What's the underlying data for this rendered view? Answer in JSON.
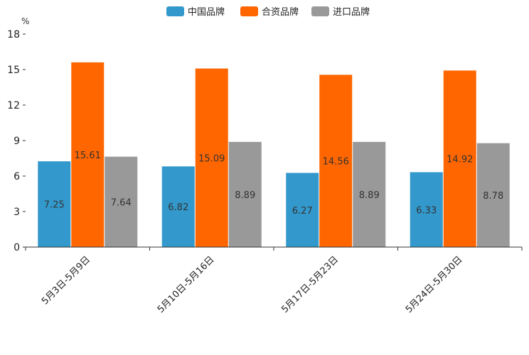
{
  "chart_data": {
    "type": "bar",
    "title": "",
    "xlabel": "",
    "ylabel": "%",
    "ylim": [
      0,
      18
    ],
    "yticks": [
      0,
      3,
      6,
      9,
      12,
      15,
      18
    ],
    "grid": false,
    "legend_position": "top-center",
    "categories": [
      "5月3日-5月9日",
      "5月10日-5月16日",
      "5月17日-5月23日",
      "5月24日-5月30日"
    ],
    "series": [
      {
        "name": "中国品牌",
        "color": "#3399cc",
        "values": [
          7.25,
          6.82,
          6.27,
          6.33
        ]
      },
      {
        "name": "合资品牌",
        "color": "#ff6600",
        "values": [
          15.61,
          15.09,
          14.56,
          14.92
        ]
      },
      {
        "name": "进口品牌",
        "color": "#999999",
        "values": [
          7.64,
          8.89,
          8.89,
          8.78
        ]
      }
    ]
  }
}
